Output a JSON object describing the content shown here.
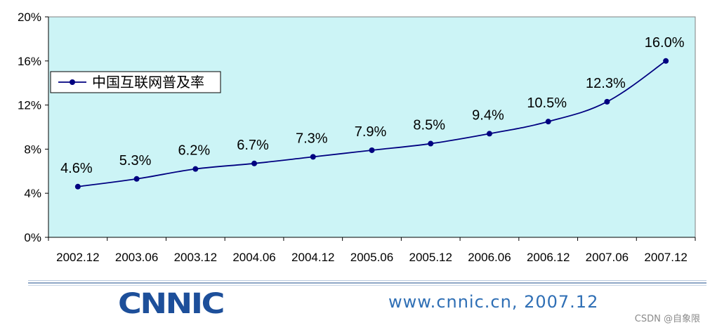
{
  "chart_data": {
    "type": "line",
    "categories": [
      "2002.12",
      "2003.06",
      "2003.12",
      "2004.06",
      "2004.12",
      "2005.06",
      "2005.12",
      "2006.06",
      "2006.12",
      "2007.06",
      "2007.12"
    ],
    "series": [
      {
        "name": "中国互联网普及率",
        "values": [
          4.6,
          5.3,
          6.2,
          6.7,
          7.3,
          7.9,
          8.5,
          9.4,
          10.5,
          12.3,
          16.0
        ],
        "color": "#000080"
      }
    ],
    "data_labels": [
      "4.6%",
      "5.3%",
      "6.2%",
      "6.7%",
      "7.3%",
      "7.9%",
      "8.5%",
      "9.4%",
      "10.5%",
      "12.3%",
      "16.0%"
    ],
    "yticks": [
      0,
      4,
      8,
      12,
      16,
      20
    ],
    "ytick_labels": [
      "0%",
      "4%",
      "8%",
      "12%",
      "16%",
      "20%"
    ],
    "ylim": [
      0,
      20
    ],
    "title": "",
    "xlabel": "",
    "ylabel": "",
    "grid": false,
    "legend_position": "top-left",
    "plot_background": "#ccf4f6"
  },
  "footer": {
    "logo": "CNNIC",
    "url": "www.cnnic.cn, 2007.12",
    "line_color": "#8fa7c6"
  },
  "watermark": "CSDN @自象限"
}
